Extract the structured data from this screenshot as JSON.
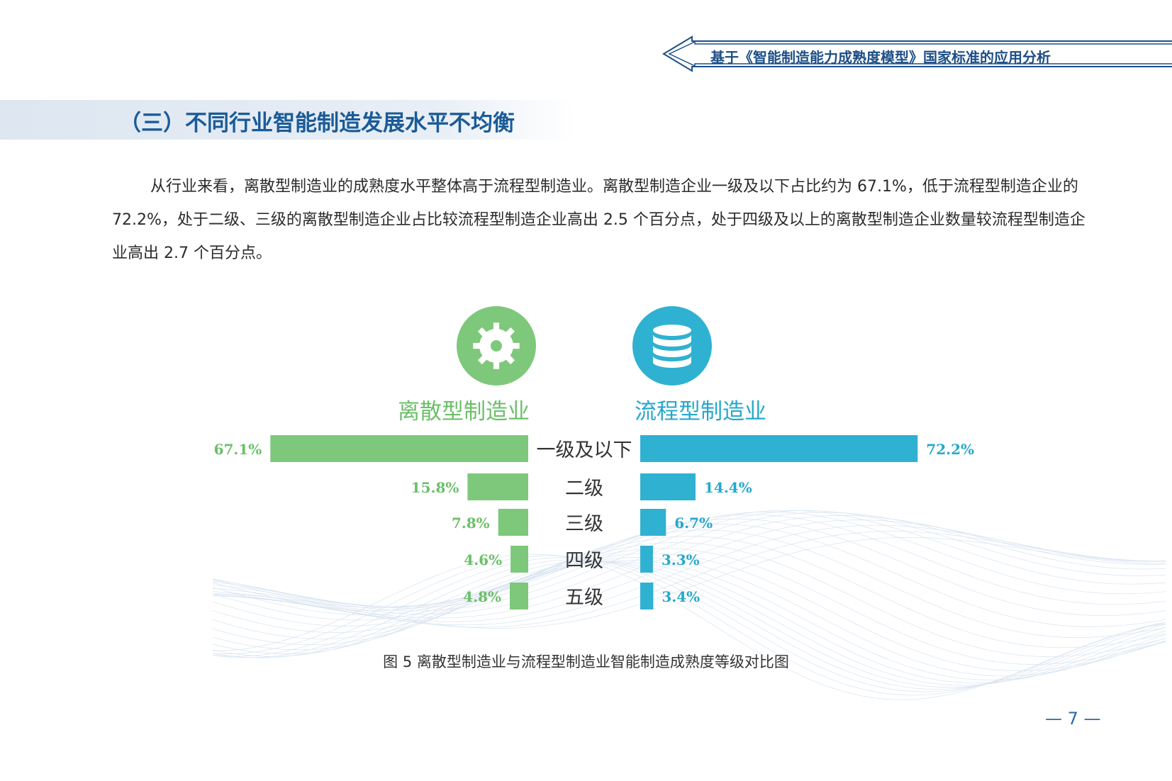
{
  "header": {
    "title": "基于《智能制造能力成熟度模型》国家标准的应用分析"
  },
  "section": {
    "title": "（三）不同行业智能制造发展水平不均衡"
  },
  "body": {
    "paragraph": "从行业来看，离散型制造业的成熟度水平整体高于流程型制造业。离散型制造企业一级及以下占比约为 67.1%，低于流程型制造企业的 72.2%，处于二级、三级的离散型制造企业占比较流程型制造企业高出 2.5 个百分点，处于四级及以上的离散型制造企业数量较流程型制造企业高出 2.7 个百分点。"
  },
  "figure": {
    "caption": "图 5  离散型制造业与流程型制造业智能制造成熟度等级对比图"
  },
  "page": {
    "number": "— 7 —"
  },
  "icons": {
    "left": "gear-icon",
    "right": "database-icon"
  },
  "colors": {
    "discrete": "#7ec87b",
    "process": "#2fb1d2",
    "heading": "#1b5b98"
  },
  "chart_data": {
    "type": "bar",
    "orientation": "horizontal-diverging",
    "categories": [
      "一级及以下",
      "二级",
      "三级",
      "四级",
      "五级"
    ],
    "series": [
      {
        "name": "离散型制造业",
        "values": [
          67.1,
          15.8,
          7.8,
          4.6,
          4.8
        ],
        "labels": [
          "67.1%",
          "15.8%",
          "7.8%",
          "4.6%",
          "4.8%"
        ],
        "color": "#7ec87b"
      },
      {
        "name": "流程型制造业",
        "values": [
          72.2,
          14.4,
          6.7,
          3.3,
          3.4
        ],
        "labels": [
          "72.2%",
          "14.4%",
          "6.7%",
          "3.3%",
          "3.4%"
        ],
        "color": "#2fb1d2"
      }
    ],
    "unit": "%",
    "title": "",
    "xlabel": "",
    "ylabel": ""
  }
}
